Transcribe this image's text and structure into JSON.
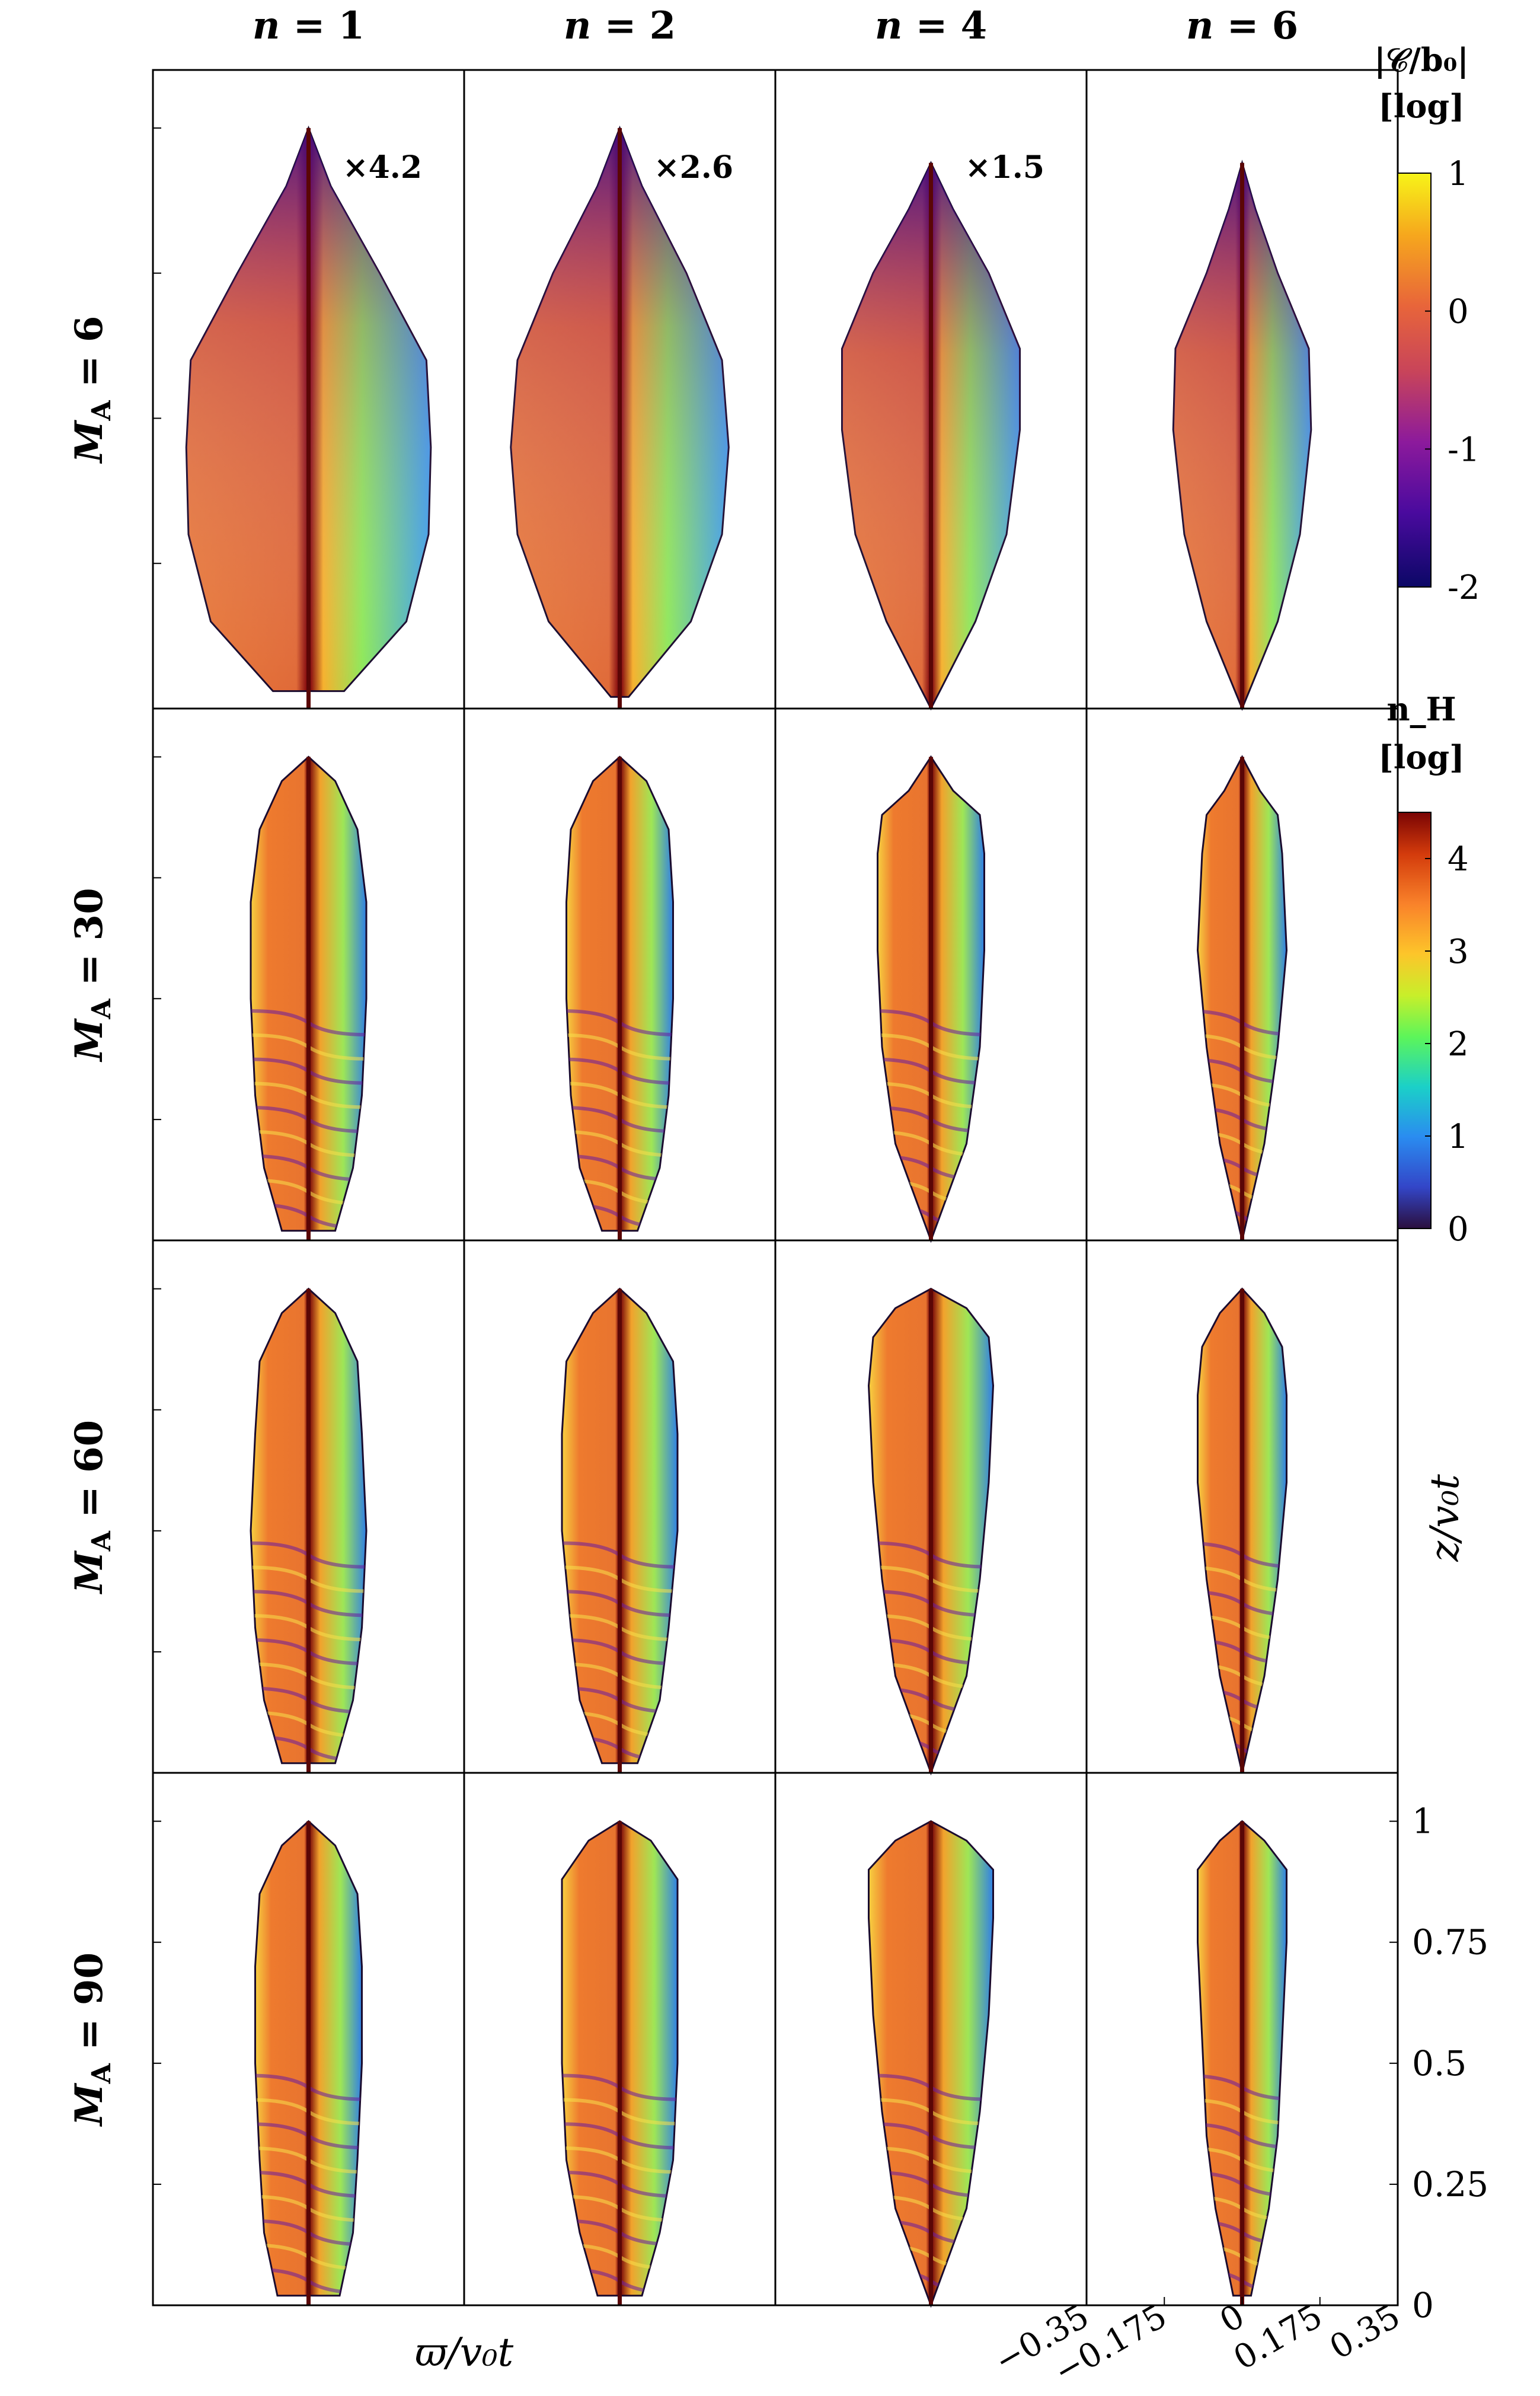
{
  "chart_data": {
    "type": "heatmap",
    "title": "",
    "columns": [
      {
        "label": "n = 1",
        "n": 1
      },
      {
        "label": "n = 2",
        "n": 2
      },
      {
        "label": "n = 4",
        "n": 4
      },
      {
        "label": "n = 6",
        "n": 6
      }
    ],
    "rows": [
      {
        "label": "M_A = 6",
        "MA": 6,
        "quantity": "|C/b0|"
      },
      {
        "label": "M_A = 30",
        "MA": 30,
        "quantity": "n_H"
      },
      {
        "label": "M_A = 60",
        "MA": 60,
        "quantity": "n_H"
      },
      {
        "label": "M_A = 90",
        "MA": 90,
        "quantity": "n_H"
      }
    ],
    "scale_annotations": [
      {
        "row": 0,
        "col": 0,
        "text": "×4.2",
        "factor": 4.2
      },
      {
        "row": 0,
        "col": 1,
        "text": "×2.6",
        "factor": 2.6
      },
      {
        "row": 0,
        "col": 2,
        "text": "×1.5",
        "factor": 1.5
      }
    ],
    "colorbars": [
      {
        "label_line1": "|𝒞/b₀|",
        "label_line2": "[log]",
        "range": [
          -2,
          1
        ],
        "ticks": [
          "1",
          "0",
          "-1",
          "-2"
        ],
        "tick_values": [
          1,
          0,
          -1,
          -2
        ]
      },
      {
        "label_line1": "n_H",
        "label_line2": "[log]",
        "range": [
          0,
          4.5
        ],
        "ticks": [
          "4",
          "3",
          "2",
          "1",
          "0"
        ],
        "tick_values": [
          4,
          3,
          2,
          1,
          0
        ]
      }
    ],
    "xlabel": "ϖ/v₀t",
    "ylabel": "z/v₀t",
    "xticks": [
      "−0.35",
      "−0.175",
      "0",
      "0.175",
      "0.35"
    ],
    "xtick_values": [
      -0.35,
      -0.175,
      0,
      0.175,
      0.35
    ],
    "xlim": [
      -0.35,
      0.35
    ],
    "yticks": [
      "1",
      "0.75",
      "0.5",
      "0.25",
      "0"
    ],
    "ytick_values": [
      1,
      0.75,
      0.5,
      0.25,
      0
    ],
    "ylim": [
      0,
      1.1
    ],
    "panel_shapes": {
      "rows": [
        {
          "cols": [
            {
              "z": [
                1.0,
                0.9,
                0.75,
                0.6,
                0.45,
                0.3,
                0.15,
                0.03
              ],
              "w": [
                0.0,
                0.05,
                0.16,
                0.265,
                0.275,
                0.27,
                0.22,
                0.08
              ]
            },
            {
              "z": [
                1.0,
                0.9,
                0.75,
                0.6,
                0.45,
                0.3,
                0.15,
                0.02
              ],
              "w": [
                0.0,
                0.05,
                0.15,
                0.23,
                0.245,
                0.23,
                0.16,
                0.02
              ]
            },
            {
              "z": [
                0.94,
                0.86,
                0.75,
                0.62,
                0.48,
                0.3,
                0.15,
                0.0
              ],
              "w": [
                0.0,
                0.05,
                0.13,
                0.2,
                0.2,
                0.17,
                0.1,
                0.0
              ]
            },
            {
              "z": [
                0.94,
                0.86,
                0.75,
                0.62,
                0.48,
                0.3,
                0.15,
                0.0
              ],
              "w": [
                0.0,
                0.03,
                0.08,
                0.15,
                0.155,
                0.13,
                0.08,
                0.0
              ]
            }
          ]
        },
        {
          "cols": [
            {
              "z": [
                1.0,
                0.95,
                0.85,
                0.7,
                0.5,
                0.3,
                0.15,
                0.02
              ],
              "w": [
                0.0,
                0.06,
                0.11,
                0.13,
                0.13,
                0.12,
                0.1,
                0.06
              ]
            },
            {
              "z": [
                1.0,
                0.95,
                0.85,
                0.7,
                0.5,
                0.3,
                0.15,
                0.02
              ],
              "w": [
                0.0,
                0.06,
                0.11,
                0.12,
                0.12,
                0.11,
                0.09,
                0.04
              ]
            },
            {
              "z": [
                1.0,
                0.93,
                0.88,
                0.8,
                0.6,
                0.4,
                0.2,
                0.0
              ],
              "w": [
                0.0,
                0.05,
                0.11,
                0.12,
                0.12,
                0.11,
                0.08,
                0.0
              ]
            },
            {
              "z": [
                1.0,
                0.93,
                0.88,
                0.8,
                0.6,
                0.4,
                0.2,
                0.0
              ],
              "w": [
                0.0,
                0.04,
                0.08,
                0.09,
                0.1,
                0.08,
                0.05,
                0.0
              ]
            }
          ]
        },
        {
          "cols": [
            {
              "z": [
                1.0,
                0.95,
                0.85,
                0.7,
                0.5,
                0.3,
                0.15,
                0.02
              ],
              "w": [
                0.0,
                0.06,
                0.11,
                0.12,
                0.13,
                0.12,
                0.1,
                0.06
              ]
            },
            {
              "z": [
                1.0,
                0.95,
                0.85,
                0.7,
                0.5,
                0.3,
                0.15,
                0.02
              ],
              "w": [
                0.0,
                0.06,
                0.12,
                0.13,
                0.13,
                0.11,
                0.09,
                0.04
              ]
            },
            {
              "z": [
                1.0,
                0.96,
                0.9,
                0.8,
                0.6,
                0.4,
                0.2,
                0.0
              ],
              "w": [
                0.0,
                0.08,
                0.13,
                0.14,
                0.13,
                0.11,
                0.08,
                0.0
              ]
            },
            {
              "z": [
                1.0,
                0.95,
                0.88,
                0.78,
                0.6,
                0.4,
                0.2,
                0.0
              ],
              "w": [
                0.0,
                0.05,
                0.09,
                0.1,
                0.1,
                0.08,
                0.05,
                0.0
              ]
            }
          ]
        },
        {
          "cols": [
            {
              "z": [
                1.0,
                0.95,
                0.85,
                0.7,
                0.5,
                0.3,
                0.15,
                0.02
              ],
              "w": [
                0.0,
                0.06,
                0.11,
                0.12,
                0.12,
                0.11,
                0.1,
                0.07
              ]
            },
            {
              "z": [
                1.0,
                0.96,
                0.88,
                0.7,
                0.5,
                0.3,
                0.15,
                0.02
              ],
              "w": [
                0.0,
                0.07,
                0.13,
                0.13,
                0.13,
                0.12,
                0.09,
                0.05
              ]
            },
            {
              "z": [
                1.0,
                0.96,
                0.9,
                0.8,
                0.6,
                0.4,
                0.2,
                0.0
              ],
              "w": [
                0.0,
                0.08,
                0.14,
                0.14,
                0.13,
                0.11,
                0.08,
                0.0
              ]
            },
            {
              "z": [
                1.0,
                0.96,
                0.9,
                0.75,
                0.55,
                0.35,
                0.2,
                0.02
              ],
              "w": [
                0.0,
                0.05,
                0.1,
                0.1,
                0.09,
                0.08,
                0.06,
                0.02
              ]
            }
          ]
        }
      ]
    }
  }
}
